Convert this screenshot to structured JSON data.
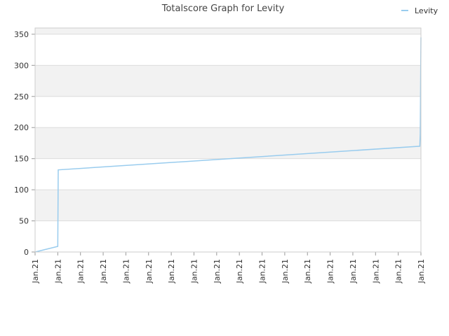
{
  "chart_data": {
    "type": "line",
    "title": "Totalscore Graph for Levity",
    "xlabel": "",
    "ylabel": "",
    "ylim": [
      0,
      360
    ],
    "y_ticks": [
      0,
      50,
      100,
      150,
      200,
      250,
      300,
      350
    ],
    "x_tick_labels": [
      "Jan.21",
      "Jan.21",
      "Jan.21",
      "Jan.21",
      "Jan.21",
      "Jan.21",
      "Jan.21",
      "Jan.21",
      "Jan.21",
      "Jan.21",
      "Jan.21",
      "Jan.21",
      "Jan.21",
      "Jan.21",
      "Jan.21",
      "Jan.21",
      "Jan.21",
      "Jan.21"
    ],
    "grid": true,
    "legend_position": "top-right",
    "series": [
      {
        "name": "Levity",
        "color": "#99ccee",
        "points": [
          {
            "x": 0.0,
            "y": 0
          },
          {
            "x": 1.0,
            "y": 9
          },
          {
            "x": 1.02,
            "y": 132
          },
          {
            "x": 16.95,
            "y": 170
          },
          {
            "x": 16.97,
            "y": 190
          },
          {
            "x": 17.0,
            "y": 345
          }
        ]
      }
    ]
  }
}
